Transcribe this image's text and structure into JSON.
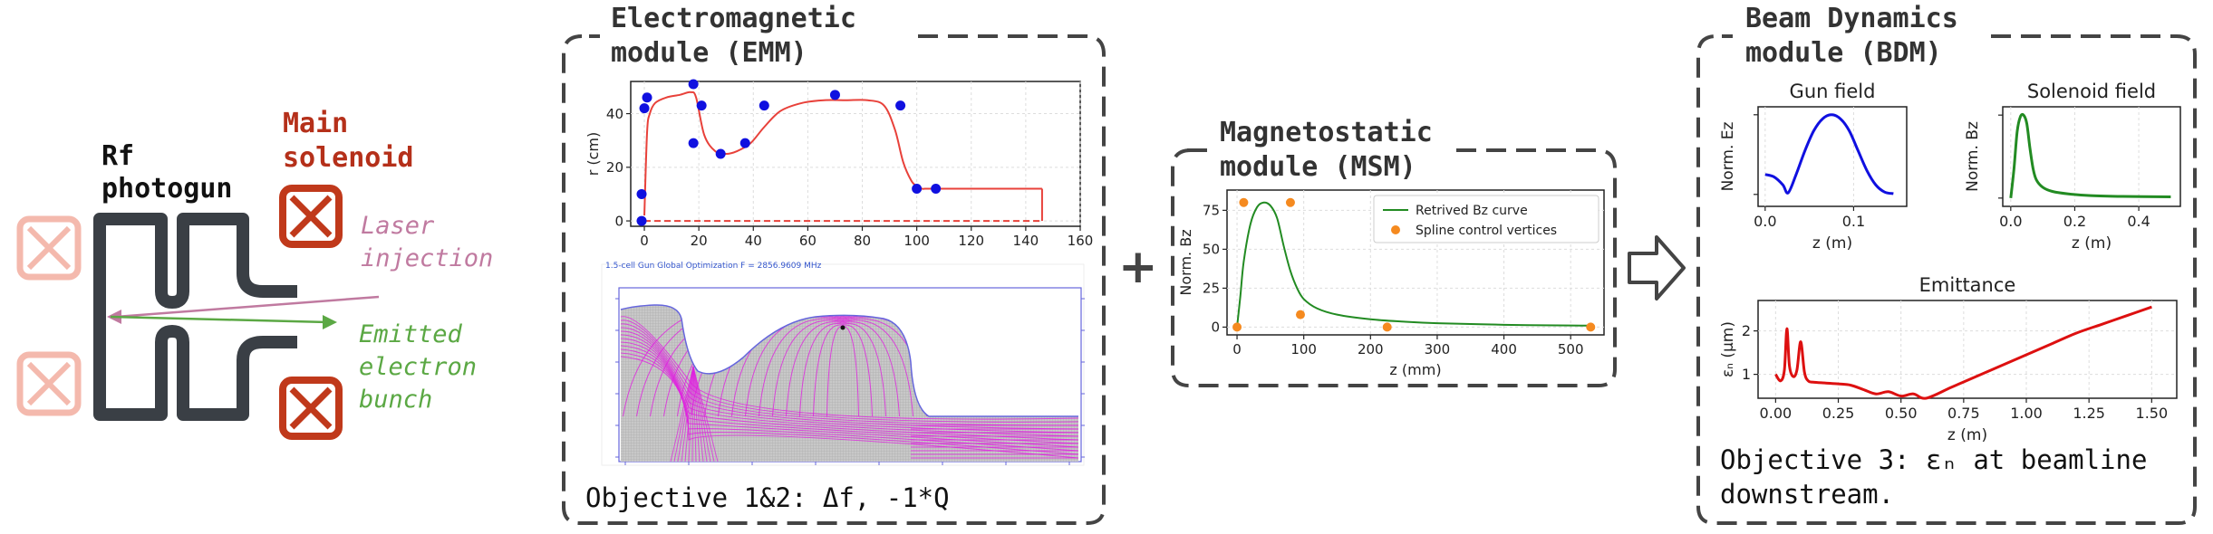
{
  "colors": {
    "dark": "#3a3f45",
    "red_label": "#b5301a",
    "solenoid_fill": "#c0391b",
    "solenoid_faded": "#f4b9ad",
    "laser": "#c07aa0",
    "electron": "#5ba844",
    "plot_red": "#e8413a",
    "plot_blue": "#1010e0",
    "plot_green": "#228B22",
    "orange": "#f58a1f",
    "magenta": "#e020e0"
  },
  "left_panel": {
    "rf_label_1": "Rf",
    "rf_label_2": "photogun",
    "sol_label_1": "Main",
    "sol_label_2": "solenoid",
    "laser_label_1": "Laser",
    "laser_label_2": "injection",
    "electron_label_1": "Emitted",
    "electron_label_2": "electron",
    "electron_label_3": "bunch",
    "solenoid_icon": "x-box-icon"
  },
  "emm": {
    "title_1": "Electromagnetic",
    "title_2": "module (EMM)",
    "objective": "Objective 1&2: Δf, -1*Q",
    "sim_caption": "1.5-cell Gun Global Optimization  F = 2856.9609 MHz"
  },
  "msm": {
    "title_1": "Magnetostatic",
    "title_2": "module (MSM)"
  },
  "bdm": {
    "title_1": "Beam Dynamics",
    "title_2": "module (BDM)",
    "objective_1": "Objective 3: εₙ at beamline",
    "objective_2": "downstream."
  },
  "plus_sign": "+",
  "arrow_icon": "hollow-right-arrow-icon",
  "chart_data": [
    {
      "id": "emm_profile",
      "type": "line",
      "xlabel": "",
      "ylabel": "r (cm)",
      "xlim": [
        -5,
        160
      ],
      "ylim": [
        -2,
        52
      ],
      "xticks": [
        0,
        20,
        40,
        60,
        80,
        100,
        120,
        140,
        160
      ],
      "yticks": [
        0,
        20,
        40
      ],
      "series": [
        {
          "role": "profile",
          "x": [
            0,
            1,
            2,
            4,
            8,
            13,
            17,
            19,
            22,
            26,
            30,
            34,
            39,
            44,
            50,
            58,
            66,
            74,
            82,
            88,
            92,
            95,
            98,
            100,
            102,
            103,
            105,
            108,
            146
          ],
          "y": [
            2,
            33,
            40,
            44,
            46,
            47,
            48,
            46,
            32,
            26,
            25,
            26,
            29,
            35,
            41,
            44,
            45,
            45,
            45,
            43,
            34,
            22,
            15,
            13,
            12,
            12,
            12,
            12,
            12
          ]
        },
        {
          "role": "axis_dashed",
          "x": [
            0,
            146
          ],
          "y": [
            0,
            0
          ]
        },
        {
          "role": "closing_edge",
          "x": [
            146,
            146
          ],
          "y": [
            0,
            12
          ]
        },
        {
          "role": "control_points",
          "x": [
            -1,
            -1,
            0,
            1,
            18,
            18,
            21,
            28,
            37,
            44,
            70,
            94,
            100,
            107
          ],
          "y": [
            0,
            10,
            42,
            46,
            51,
            29,
            43,
            25,
            29,
            43,
            47,
            43,
            12,
            12
          ]
        }
      ]
    },
    {
      "id": "msm_bz",
      "type": "line",
      "xlabel": "z (mm)",
      "ylabel": "Norm. Bz",
      "xlim": [
        -15,
        550
      ],
      "ylim": [
        -5,
        88
      ],
      "xticks": [
        0,
        100,
        200,
        300,
        400,
        500
      ],
      "yticks": [
        0,
        25,
        50,
        75
      ],
      "legend": [
        "Retrived Bz curve",
        "Spline control vertices"
      ],
      "legend_position": "top-right",
      "series": [
        {
          "name": "Retrived Bz curve",
          "x": [
            0,
            5,
            10,
            20,
            30,
            40,
            50,
            60,
            70,
            80,
            90,
            100,
            120,
            150,
            200,
            250,
            300,
            400,
            500,
            530
          ],
          "y": [
            0,
            20,
            42,
            66,
            77,
            80,
            78,
            70,
            52,
            36,
            25,
            18,
            12,
            8,
            5,
            3.5,
            2.5,
            1.5,
            1,
            1
          ]
        },
        {
          "name": "Spline control vertices",
          "x": [
            0,
            10,
            80,
            95,
            225,
            530
          ],
          "y": [
            0,
            80,
            80,
            8,
            0,
            0
          ]
        }
      ]
    },
    {
      "id": "gun_field",
      "type": "line",
      "title": "Gun field",
      "xlabel": "z (m)",
      "ylabel": "Norm. Ez",
      "xlim": [
        -0.008,
        0.16
      ],
      "ylim": [
        -0.15,
        1.1
      ],
      "xticks": [
        0.0,
        0.1
      ],
      "series": [
        {
          "x": [
            0,
            0.01,
            0.02,
            0.026,
            0.035,
            0.045,
            0.055,
            0.065,
            0.075,
            0.085,
            0.095,
            0.105,
            0.115,
            0.125,
            0.135,
            0.145
          ],
          "y": [
            0.25,
            0.22,
            0.12,
            0.02,
            0.25,
            0.55,
            0.8,
            0.95,
            1.0,
            0.95,
            0.8,
            0.55,
            0.3,
            0.12,
            0.03,
            0.01
          ]
        }
      ]
    },
    {
      "id": "solenoid_field",
      "type": "line",
      "title": "Solenoid field",
      "xlabel": "z (m)",
      "ylabel": "Norm. Bz",
      "xlim": [
        -0.025,
        0.53
      ],
      "ylim": [
        -0.1,
        1.1
      ],
      "xticks": [
        0.0,
        0.2,
        0.4
      ],
      "series": [
        {
          "x": [
            0,
            0.01,
            0.02,
            0.03,
            0.04,
            0.05,
            0.06,
            0.07,
            0.08,
            0.1,
            0.13,
            0.18,
            0.25,
            0.35,
            0.5
          ],
          "y": [
            0,
            0.35,
            0.8,
            0.98,
            1.0,
            0.9,
            0.6,
            0.35,
            0.22,
            0.13,
            0.08,
            0.05,
            0.03,
            0.02,
            0.015
          ]
        }
      ]
    },
    {
      "id": "emittance",
      "type": "line",
      "title": "Emittance",
      "xlabel": "z (m)",
      "ylabel": "εₙ (μm)",
      "xlim": [
        -0.07,
        1.6
      ],
      "ylim": [
        0.45,
        2.7
      ],
      "xticks": [
        0.0,
        0.25,
        0.5,
        0.75,
        1.0,
        1.25,
        1.5
      ],
      "yticks": [
        1,
        2
      ],
      "series": [
        {
          "x": [
            0,
            0.02,
            0.035,
            0.045,
            0.055,
            0.07,
            0.085,
            0.1,
            0.115,
            0.13,
            0.15,
            0.2,
            0.25,
            0.3,
            0.35,
            0.4,
            0.45,
            0.5,
            0.55,
            0.6,
            0.7,
            0.8,
            0.9,
            1.0,
            1.1,
            1.2,
            1.3,
            1.4,
            1.5
          ],
          "y": [
            1.0,
            0.85,
            1.1,
            2.05,
            1.2,
            0.95,
            1.1,
            1.75,
            1.05,
            0.85,
            0.82,
            0.8,
            0.78,
            0.75,
            0.65,
            0.55,
            0.6,
            0.5,
            0.55,
            0.45,
            0.7,
            0.95,
            1.2,
            1.45,
            1.7,
            1.95,
            2.15,
            2.35,
            2.55
          ]
        }
      ]
    }
  ]
}
